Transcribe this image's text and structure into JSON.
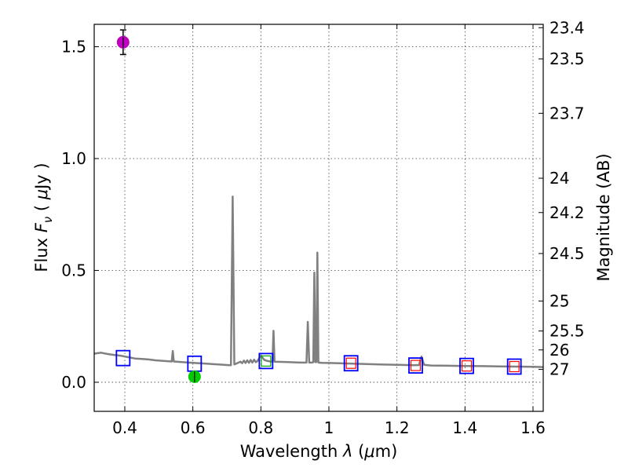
{
  "chart_data": {
    "type": "scatter",
    "title": "",
    "xlabel": {
      "prefix": "Wavelength  ",
      "lambda": "λ",
      "open": " (",
      "mu": "μ",
      "unit": "m)"
    },
    "ylabel": {
      "prefix": "Flux  ",
      "F": "F",
      "nu": "ν",
      "open": "  ( ",
      "mu": "μ",
      "unit": "Jy )"
    },
    "y2label": "Magnitude (AB)",
    "xlim": [
      0.31,
      1.63
    ],
    "ylim": [
      -0.13,
      1.6
    ],
    "xticks": [
      {
        "v": 0.4,
        "label": "0.4"
      },
      {
        "v": 0.6,
        "label": "0.6"
      },
      {
        "v": 0.8,
        "label": "0.8"
      },
      {
        "v": 1.0,
        "label": "1"
      },
      {
        "v": 1.2,
        "label": "1.2"
      },
      {
        "v": 1.4,
        "label": "1.4"
      },
      {
        "v": 1.6,
        "label": "1.6"
      }
    ],
    "yticks": [
      {
        "v": 0.0,
        "label": "0.0"
      },
      {
        "v": 0.5,
        "label": "0.5"
      },
      {
        "v": 1.0,
        "label": "1.0"
      },
      {
        "v": 1.5,
        "label": "1.5"
      }
    ],
    "y2ticks": [
      {
        "mag": 23.4,
        "label": "23.4"
      },
      {
        "mag": 23.5,
        "label": "23.5"
      },
      {
        "mag": 23.7,
        "label": "23.7"
      },
      {
        "mag": 24,
        "label": "24"
      },
      {
        "mag": 24.2,
        "label": "24.2"
      },
      {
        "mag": 24.5,
        "label": "24.5"
      },
      {
        "mag": 25,
        "label": "25"
      },
      {
        "mag": 25.5,
        "label": "25.5"
      },
      {
        "mag": 26,
        "label": "26"
      },
      {
        "mag": 27,
        "label": "27"
      }
    ],
    "grid": true,
    "colors": {
      "spectrum": "#808080",
      "observed_blue": "#0000ff",
      "model_red": "#ff0000",
      "model_green": "#00aa00",
      "detection_magenta": "#bf00bf",
      "detection_green": "#00cc00",
      "errorbar": "#000000"
    },
    "spectrum": [
      [
        0.31,
        0.128
      ],
      [
        0.33,
        0.132
      ],
      [
        0.35,
        0.126
      ],
      [
        0.37,
        0.122
      ],
      [
        0.39,
        0.118
      ],
      [
        0.41,
        0.112
      ],
      [
        0.43,
        0.106
      ],
      [
        0.45,
        0.104
      ],
      [
        0.47,
        0.102
      ],
      [
        0.49,
        0.098
      ],
      [
        0.51,
        0.096
      ],
      [
        0.53,
        0.094
      ],
      [
        0.538,
        0.093
      ],
      [
        0.541,
        0.14
      ],
      [
        0.544,
        0.093
      ],
      [
        0.56,
        0.091
      ],
      [
        0.58,
        0.089
      ],
      [
        0.6,
        0.087
      ],
      [
        0.62,
        0.085
      ],
      [
        0.64,
        0.083
      ],
      [
        0.66,
        0.081
      ],
      [
        0.68,
        0.079
      ],
      [
        0.7,
        0.077
      ],
      [
        0.712,
        0.076
      ],
      [
        0.717,
        0.83
      ],
      [
        0.722,
        0.08
      ],
      [
        0.73,
        0.085
      ],
      [
        0.74,
        0.092
      ],
      [
        0.745,
        0.085
      ],
      [
        0.75,
        0.097
      ],
      [
        0.755,
        0.086
      ],
      [
        0.76,
        0.098
      ],
      [
        0.765,
        0.087
      ],
      [
        0.77,
        0.1
      ],
      [
        0.775,
        0.088
      ],
      [
        0.78,
        0.101
      ],
      [
        0.785,
        0.09
      ],
      [
        0.79,
        0.095
      ],
      [
        0.8,
        0.12
      ],
      [
        0.81,
        0.1
      ],
      [
        0.82,
        0.095
      ],
      [
        0.83,
        0.092
      ],
      [
        0.834,
        0.092
      ],
      [
        0.837,
        0.23
      ],
      [
        0.84,
        0.092
      ],
      [
        0.86,
        0.091
      ],
      [
        0.88,
        0.09
      ],
      [
        0.9,
        0.089
      ],
      [
        0.92,
        0.088
      ],
      [
        0.934,
        0.088
      ],
      [
        0.938,
        0.27
      ],
      [
        0.942,
        0.088
      ],
      [
        0.95,
        0.088
      ],
      [
        0.954,
        0.09
      ],
      [
        0.957,
        0.49
      ],
      [
        0.96,
        0.09
      ],
      [
        0.963,
        0.09
      ],
      [
        0.966,
        0.58
      ],
      [
        0.969,
        0.088
      ],
      [
        0.98,
        0.087
      ],
      [
        1.0,
        0.086
      ],
      [
        1.05,
        0.084
      ],
      [
        1.1,
        0.082
      ],
      [
        1.15,
        0.08
      ],
      [
        1.2,
        0.078
      ],
      [
        1.25,
        0.076
      ],
      [
        1.265,
        0.077
      ],
      [
        1.272,
        0.115
      ],
      [
        1.28,
        0.078
      ],
      [
        1.3,
        0.075
      ],
      [
        1.35,
        0.074
      ],
      [
        1.4,
        0.073
      ],
      [
        1.45,
        0.072
      ],
      [
        1.5,
        0.071
      ],
      [
        1.55,
        0.07
      ],
      [
        1.6,
        0.069
      ],
      [
        1.63,
        0.068
      ]
    ],
    "observed": [
      {
        "x": 0.395,
        "y": 0.108
      },
      {
        "x": 0.605,
        "y": 0.083
      },
      {
        "x": 0.815,
        "y": 0.095
      },
      {
        "x": 1.065,
        "y": 0.085
      },
      {
        "x": 1.255,
        "y": 0.075
      },
      {
        "x": 1.405,
        "y": 0.073
      },
      {
        "x": 1.545,
        "y": 0.07
      }
    ],
    "model": [
      {
        "x": 0.815,
        "y": 0.095,
        "color": "green"
      },
      {
        "x": 1.065,
        "y": 0.085,
        "color": "red"
      },
      {
        "x": 1.255,
        "y": 0.075,
        "color": "red"
      },
      {
        "x": 1.405,
        "y": 0.073,
        "color": "red"
      },
      {
        "x": 1.545,
        "y": 0.07,
        "color": "red"
      }
    ],
    "detections": [
      {
        "x": 0.395,
        "y": 1.52,
        "err": 0.055,
        "color": "magenta"
      },
      {
        "x": 0.605,
        "y": 0.025,
        "err": 0.018,
        "color": "green"
      }
    ]
  }
}
